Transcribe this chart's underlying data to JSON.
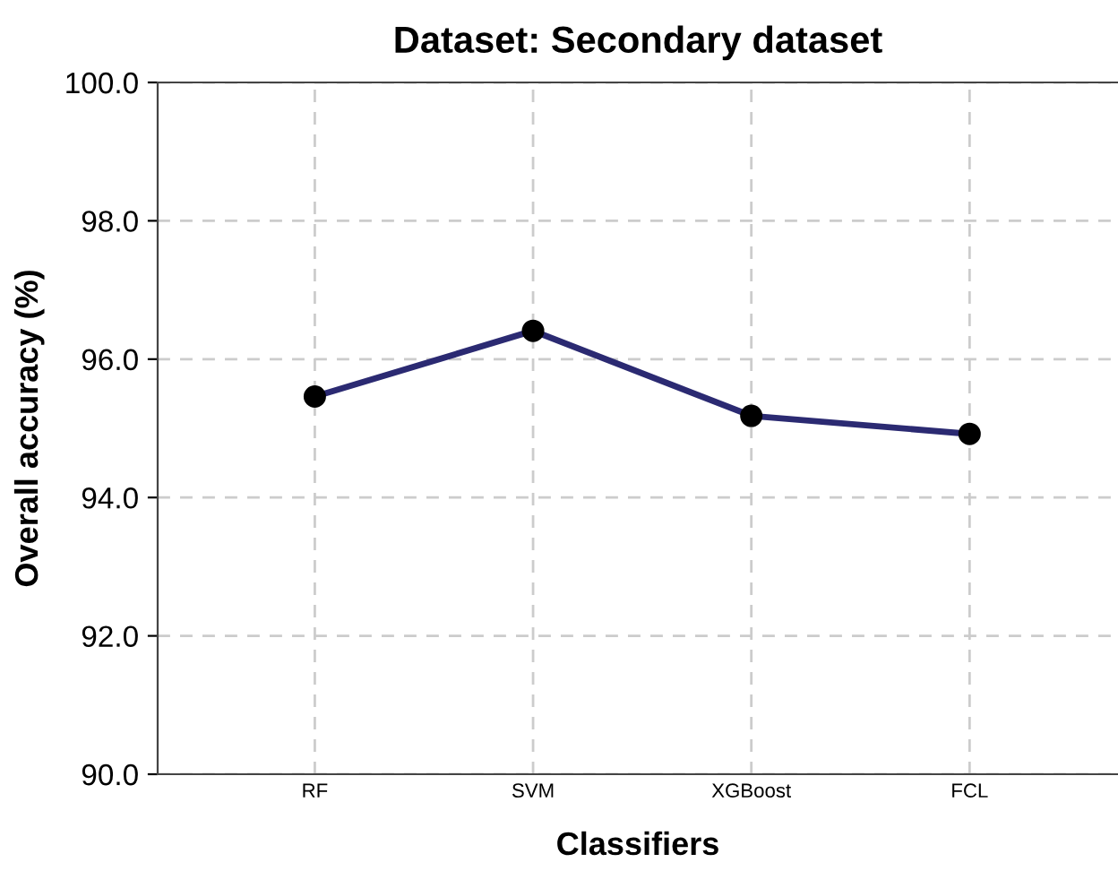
{
  "chart_data": {
    "type": "line",
    "title": "Dataset: Secondary dataset",
    "xlabel": "Classifiers",
    "ylabel": "Overall accuracy (%)",
    "categories": [
      "RF",
      "SVM",
      "XGBoost",
      "FCL"
    ],
    "series": [
      {
        "color": "#2b2a72",
        "values": [
          95.46,
          96.41,
          95.18,
          94.92
        ]
      }
    ],
    "ylim": [
      90,
      100
    ],
    "yticks": [
      {
        "value": 90,
        "label": "90.0"
      },
      {
        "value": 92,
        "label": "92.0"
      },
      {
        "value": 94,
        "label": "94.0"
      },
      {
        "value": 96,
        "label": "96.0"
      },
      {
        "value": 98,
        "label": "98.0"
      },
      {
        "value": 100,
        "label": "100.0"
      }
    ],
    "grid": true,
    "marker": "circle",
    "line_style": "solid"
  }
}
